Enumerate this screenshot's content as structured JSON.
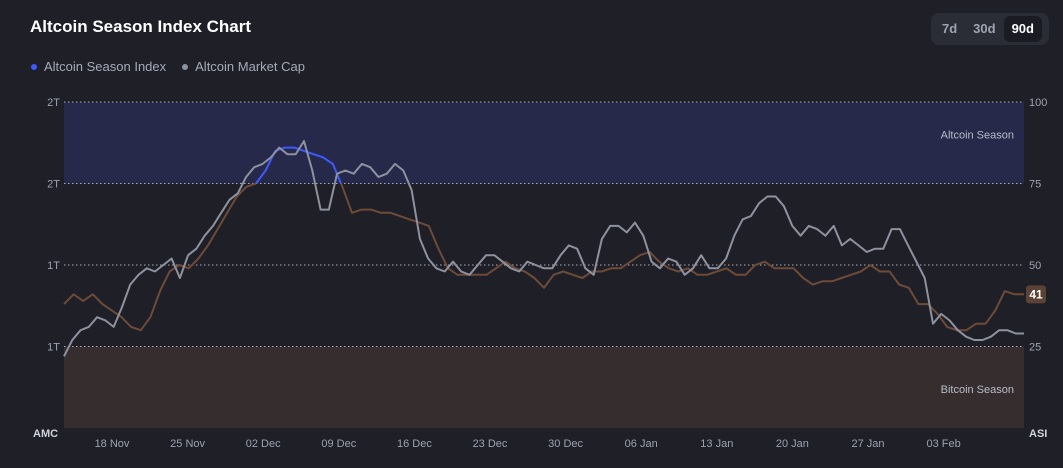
{
  "header": {
    "title": "Altcoin Season Index Chart",
    "ranges": [
      "7d",
      "30d",
      "90d"
    ],
    "active_range": "90d"
  },
  "colors": {
    "background": "#1e1f27",
    "altcoin_zone": "#27294a",
    "bitcoin_zone": "#362d2e",
    "index_blue": "#3d5afe",
    "index_brown": "#6e4b38",
    "market_cap_gray": "#8e919e",
    "badge_bg": "#5a4334"
  },
  "chart_data": {
    "type": "line",
    "legend_placement": "top-left",
    "legend": [
      "Altcoin Season Index",
      "Altcoin Market Cap"
    ],
    "left_axis": {
      "title": "AMC",
      "tick_labels": [
        "2T",
        "2T",
        "1T",
        "1T"
      ]
    },
    "right_axis": {
      "title": "ASI",
      "ticks": [
        100,
        75,
        50,
        25
      ],
      "ylim": [
        0,
        100
      ]
    },
    "x_labels": [
      "18 Nov",
      "25 Nov",
      "02 Dec",
      "09 Dec",
      "16 Dec",
      "23 Dec",
      "30 Dec",
      "06 Jan",
      "13 Jan",
      "20 Jan",
      "27 Jan",
      "03 Feb"
    ],
    "zones": [
      {
        "label": "Altcoin Season",
        "from": 75,
        "to": 100
      },
      {
        "label": "Bitcoin Season",
        "from": 0,
        "to": 25
      }
    ],
    "grid": true,
    "current_value": "41",
    "series": [
      {
        "name": "Altcoin Season Index",
        "axis": "right",
        "threshold": 75,
        "values": [
          38,
          41,
          39,
          41,
          38,
          36,
          34,
          31,
          30,
          34,
          42,
          48,
          50,
          49,
          52,
          56,
          61,
          66,
          71,
          74,
          75,
          79,
          85,
          86,
          86,
          85,
          84,
          83,
          81,
          74,
          66,
          67,
          67,
          66,
          66,
          65,
          64,
          63,
          62,
          55,
          49,
          47,
          47,
          47,
          47,
          49,
          51,
          49,
          48,
          46,
          43,
          47,
          48,
          47,
          46,
          48,
          48,
          49,
          49,
          51,
          53,
          54,
          51,
          49,
          48,
          49,
          47,
          47,
          48,
          49,
          47,
          47,
          50,
          51,
          49,
          49,
          49,
          46,
          44,
          45,
          45,
          46,
          47,
          48,
          50,
          48,
          48,
          44,
          43,
          38,
          38,
          35,
          31,
          30,
          30,
          32,
          32,
          36,
          42,
          41,
          41
        ]
      },
      {
        "name": "Altcoin Market Cap",
        "axis": "right",
        "values": [
          22,
          27,
          30,
          31,
          34,
          33,
          31,
          37,
          44,
          47,
          49,
          48,
          50,
          52,
          46,
          53,
          55,
          59,
          62,
          66,
          70,
          72,
          77,
          80,
          81,
          83,
          86,
          84,
          84,
          88,
          79,
          67,
          67,
          78,
          79,
          78,
          81,
          80,
          77,
          78,
          81,
          79,
          73,
          58,
          52,
          49,
          48,
          51,
          48,
          47,
          50,
          53,
          53,
          51,
          49,
          48,
          51,
          50,
          49,
          49,
          53,
          56,
          55,
          49,
          47,
          58,
          62,
          62,
          60,
          63,
          59,
          51,
          49,
          52,
          51,
          47,
          49,
          53,
          49,
          49,
          52,
          59,
          64,
          65,
          69,
          71,
          71,
          68,
          62,
          59,
          62,
          61,
          59,
          62,
          56,
          58,
          56,
          54,
          55,
          55,
          61,
          61,
          56,
          51,
          46,
          32,
          35,
          33,
          30,
          28,
          27,
          27,
          28,
          30,
          30,
          29,
          29
        ]
      }
    ]
  }
}
